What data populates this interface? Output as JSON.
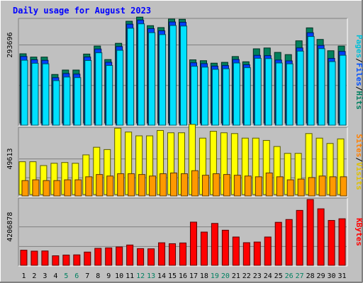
{
  "chart_data": [
    {
      "type": "bar",
      "title": "Daily usage for August 2023",
      "categories": [
        "1",
        "2",
        "3",
        "4",
        "5",
        "6",
        "7",
        "8",
        "9",
        "10",
        "11",
        "12",
        "13",
        "14",
        "15",
        "16",
        "17",
        "18",
        "19",
        "20",
        "21",
        "22",
        "23",
        "24",
        "25",
        "26",
        "27",
        "28",
        "29",
        "30",
        "31"
      ],
      "weekend_days": [
        "5",
        "6",
        "12",
        "13",
        "19",
        "20",
        "26",
        "27"
      ],
      "ytick": "293696",
      "ytick_value": 293696,
      "ylim": [
        0,
        390000
      ],
      "right_labels": [
        {
          "text": "Pages",
          "color": "#00c0d8"
        },
        {
          "text": "/",
          "color": "#000000"
        },
        {
          "text": "Files",
          "color": "#0050ff"
        },
        {
          "text": "/",
          "color": "#000000"
        },
        {
          "text": "Hits",
          "color": "#008060"
        }
      ],
      "series": [
        {
          "name": "Hits",
          "color": "#00805c",
          "values": [
            254000,
            242000,
            242000,
            179000,
            195000,
            195000,
            253000,
            282000,
            233000,
            292000,
            372000,
            387000,
            356000,
            349000,
            380000,
            379000,
            232000,
            229000,
            220000,
            223000,
            244000,
            225000,
            272000,
            275000,
            259000,
            251000,
            301000,
            348000,
            306000,
            265000,
            282000
          ]
        },
        {
          "name": "Files",
          "color": "#0040ff",
          "values": [
            252000,
            240000,
            238000,
            175000,
            190000,
            188000,
            250000,
            279000,
            231000,
            288000,
            369000,
            384000,
            353000,
            345000,
            377000,
            376000,
            229000,
            226000,
            217000,
            219000,
            241000,
            222000,
            256000,
            255000,
            239000,
            236000,
            283000,
            338000,
            292000,
            245000,
            270000
          ]
        },
        {
          "name": "Pages",
          "color": "#00e0ff",
          "values": [
            246000,
            235000,
            233000,
            172000,
            185000,
            183000,
            245000,
            273000,
            227000,
            282000,
            362000,
            378000,
            346000,
            339000,
            372000,
            370000,
            224000,
            221000,
            213000,
            215000,
            236000,
            219000,
            253000,
            252000,
            236000,
            233000,
            279000,
            332000,
            288000,
            241000,
            264000
          ]
        }
      ]
    },
    {
      "type": "bar",
      "ytick": "49613",
      "ytick_value": 49613,
      "ylim": [
        0,
        91000
      ],
      "right_labels": [
        {
          "text": "Sites",
          "color": "#ff8000"
        },
        {
          "text": "/",
          "color": "#000000"
        },
        {
          "text": "Visits",
          "color": "#e0c000"
        }
      ],
      "series": [
        {
          "name": "Visits",
          "color": "#ffff00",
          "values": [
            44000,
            44000,
            39000,
            42000,
            43000,
            42000,
            53000,
            63000,
            60000,
            88000,
            83000,
            78000,
            78000,
            85000,
            82000,
            82000,
            93000,
            75000,
            84000,
            82000,
            81000,
            75000,
            75000,
            72000,
            64000,
            55000,
            55000,
            81000,
            75000,
            68000,
            74000
          ]
        },
        {
          "name": "Sites",
          "color": "#ff9900",
          "values": [
            23000,
            24000,
            23000,
            23000,
            24000,
            24000,
            28000,
            31000,
            29000,
            32000,
            32000,
            31000,
            29000,
            32000,
            33000,
            32000,
            36000,
            30000,
            32000,
            31000,
            30000,
            29000,
            28000,
            33000,
            28000,
            24000,
            25000,
            27000,
            29000,
            28000,
            28000
          ]
        }
      ]
    },
    {
      "type": "bar",
      "ytick": "4206878",
      "ytick_value": 4206878,
      "ylim": [
        0,
        7300000
      ],
      "right_labels": [
        {
          "text": "KBytes",
          "color": "#ff0000"
        }
      ],
      "series": [
        {
          "name": "KBytes",
          "color": "#ff0000",
          "values": [
            1700000,
            1600000,
            1620000,
            1100000,
            1180000,
            1200000,
            1500000,
            1900000,
            1950000,
            2050000,
            2260000,
            1870000,
            1850000,
            2500000,
            2400000,
            2480000,
            4720000,
            3650000,
            4580000,
            3850000,
            3120000,
            2510000,
            2580000,
            3120000,
            4700000,
            5000000,
            5980000,
            7150000,
            6150000,
            4900000,
            5080000
          ]
        }
      ]
    }
  ]
}
